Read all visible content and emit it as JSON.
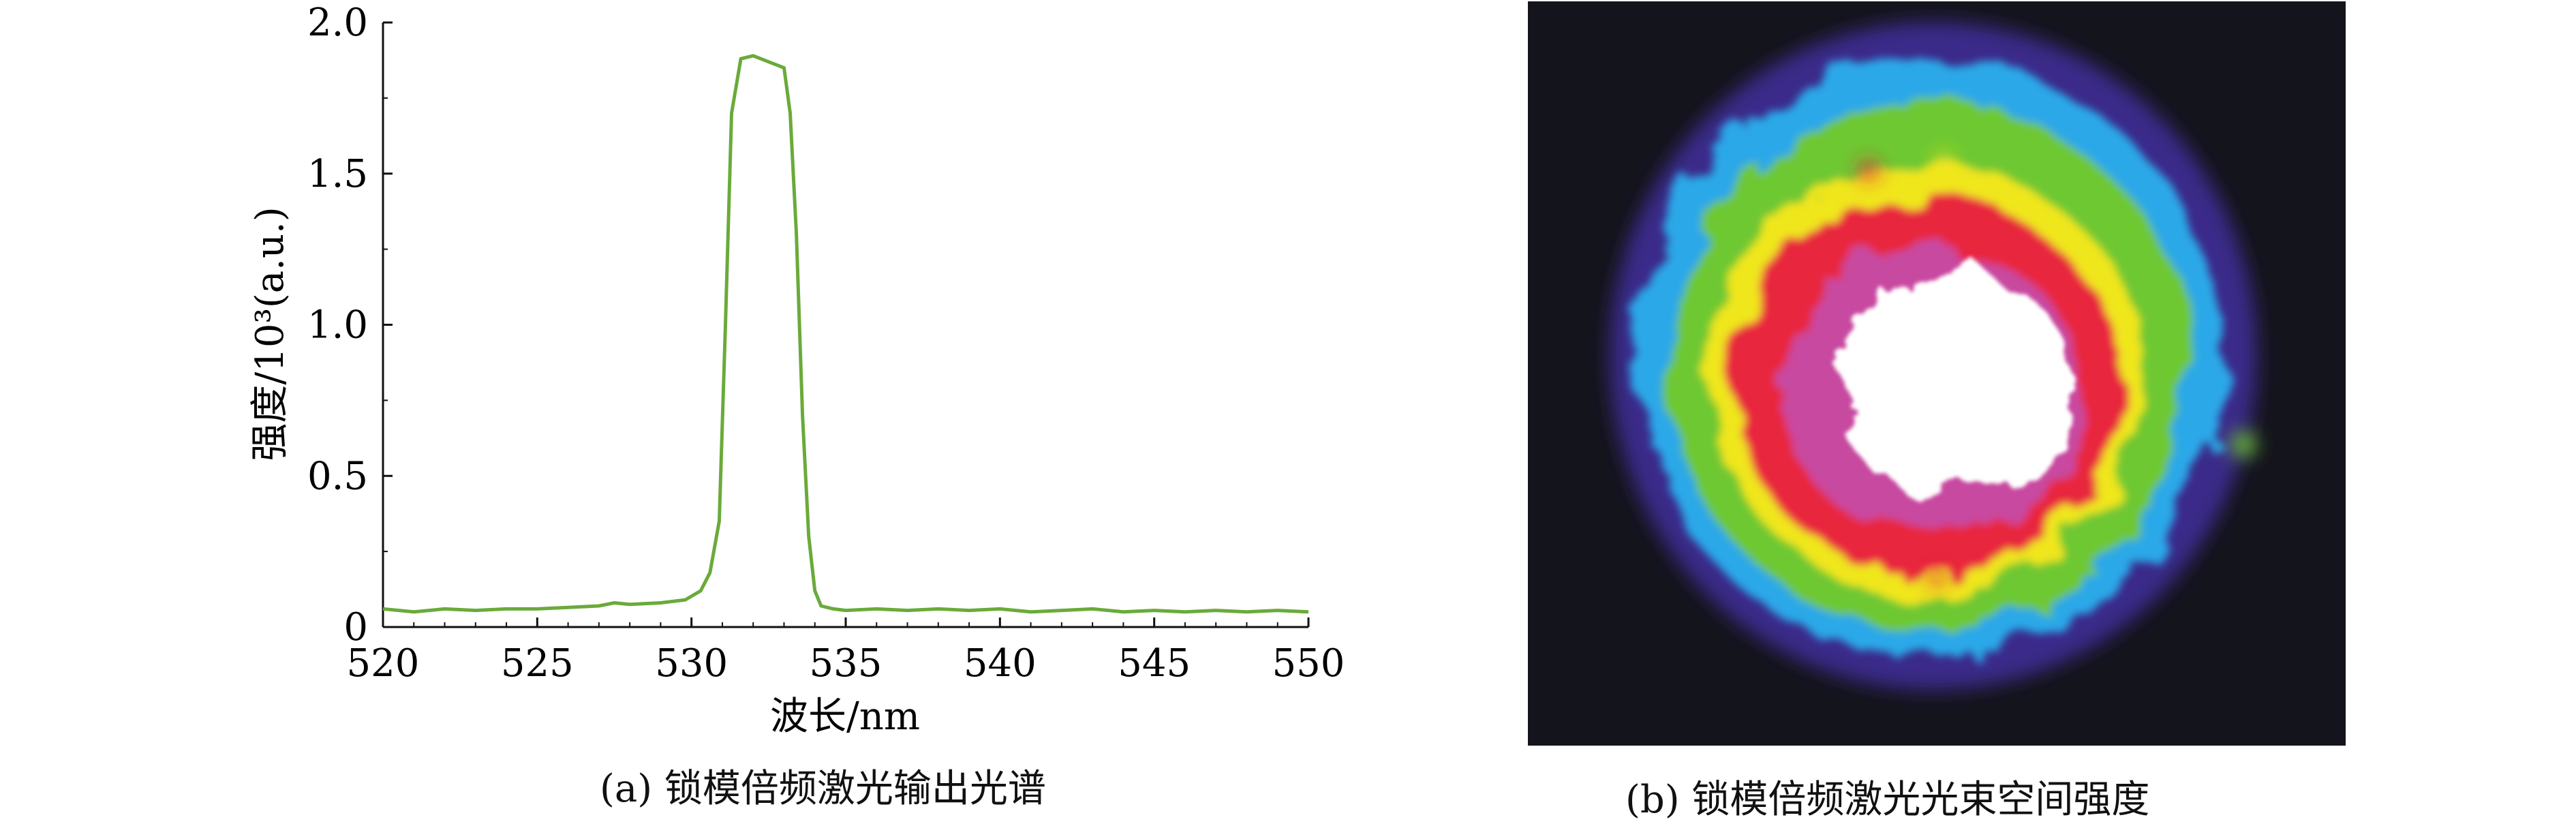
{
  "chart_data": [
    {
      "type": "line",
      "xlabel": "波长/nm",
      "ylabel": "强度/10³(a.u.)",
      "xlim": [
        520,
        550
      ],
      "ylim": [
        0,
        2.0
      ],
      "x_ticks": [
        "520",
        "525",
        "530",
        "535",
        "540",
        "545",
        "550"
      ],
      "y_ticks": [
        "0",
        "0.5",
        "1.0",
        "1.5",
        "2.0"
      ],
      "grid": false,
      "legend": "none",
      "caption": "(a) 锁模倍频激光输出光谱",
      "series": [
        {
          "color": "#6aaa3a",
          "x": [
            520,
            521,
            522,
            523,
            524,
            525,
            526,
            527,
            527.5,
            528,
            529,
            529.8,
            530.3,
            530.6,
            530.9,
            531.1,
            531.3,
            531.6,
            532.0,
            532.5,
            533.0,
            533.2,
            533.4,
            533.6,
            533.8,
            534.0,
            534.2,
            534.6,
            535,
            536,
            537,
            538,
            539,
            540,
            541,
            542,
            543,
            544,
            545,
            546,
            547,
            548,
            549,
            550
          ],
          "y": [
            0.06,
            0.05,
            0.06,
            0.055,
            0.06,
            0.06,
            0.065,
            0.07,
            0.08,
            0.075,
            0.08,
            0.09,
            0.12,
            0.18,
            0.35,
            1.0,
            1.7,
            1.88,
            1.89,
            1.87,
            1.85,
            1.7,
            1.3,
            0.7,
            0.3,
            0.12,
            0.07,
            0.06,
            0.055,
            0.06,
            0.055,
            0.06,
            0.055,
            0.06,
            0.05,
            0.055,
            0.06,
            0.05,
            0.055,
            0.05,
            0.055,
            0.05,
            0.055,
            0.05
          ]
        }
      ]
    },
    {
      "type": "heatmap",
      "caption": "(b) 锁模倍频激光光束空间强度",
      "colormap": [
        "#14141c",
        "#3a2a8a",
        "#2aa8e8",
        "#6ec832",
        "#f0e61e",
        "#e8283c",
        "#c84aa0",
        "#ffffff"
      ]
    }
  ]
}
